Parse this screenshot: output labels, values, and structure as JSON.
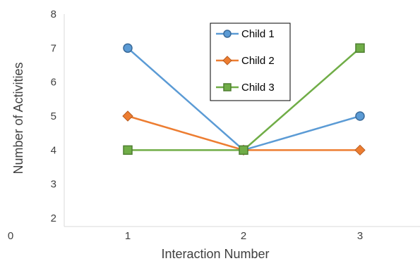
{
  "chart_data": {
    "type": "line",
    "xlabel": "Interaction Number",
    "ylabel": "Number of Activities",
    "x": [
      1,
      2,
      3
    ],
    "ylim": [
      2,
      8
    ],
    "y_ticks": [
      2,
      3,
      4,
      5,
      6,
      7,
      8
    ],
    "x_ticks": [
      1,
      2,
      3
    ],
    "stray_label": "0",
    "grid": false,
    "legend_position": "top-center",
    "series": [
      {
        "name": "Child 1",
        "values": [
          7,
          4,
          5
        ],
        "color": "#5b9bd5",
        "marker": "circle"
      },
      {
        "name": "Child 2",
        "values": [
          5,
          4,
          4
        ],
        "color": "#ed7d31",
        "marker": "diamond"
      },
      {
        "name": "Child 3",
        "values": [
          4,
          4,
          7
        ],
        "color": "#70ad47",
        "marker": "square"
      }
    ]
  }
}
